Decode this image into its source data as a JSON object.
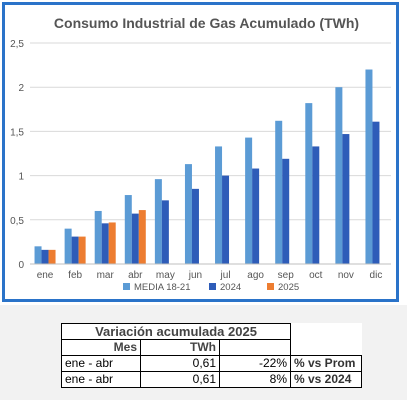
{
  "chart_data": {
    "type": "bar",
    "title": "Consumo Industrial de Gas Acumulado (TWh)",
    "xlabel": "",
    "ylabel": "",
    "categories": [
      "ene",
      "feb",
      "mar",
      "abr",
      "may",
      "jun",
      "jul",
      "ago",
      "sep",
      "oct",
      "nov",
      "dic"
    ],
    "ylim": [
      0,
      2.5
    ],
    "yticks": [
      "0",
      "0,5",
      "1",
      "1,5",
      "2",
      "2,5"
    ],
    "grid": true,
    "legend_position": "bottom",
    "series": [
      {
        "name": "MEDIA 18-21",
        "color": "#5b9bd5",
        "values": [
          0.2,
          0.4,
          0.6,
          0.78,
          0.96,
          1.13,
          1.33,
          1.43,
          1.62,
          1.82,
          2.0,
          2.2
        ]
      },
      {
        "name": "2024",
        "color": "#2e5cb8",
        "values": [
          0.16,
          0.31,
          0.46,
          0.57,
          0.72,
          0.85,
          1.0,
          1.08,
          1.19,
          1.33,
          1.47,
          1.61
        ]
      },
      {
        "name": "2025",
        "color": "#ed7d31",
        "values": [
          0.16,
          0.31,
          0.47,
          0.61,
          null,
          null,
          null,
          null,
          null,
          null,
          null,
          null
        ]
      }
    ]
  },
  "table": {
    "title": "Variación acumulada 2025",
    "headers": [
      "Mes",
      "TWh"
    ],
    "rows": [
      {
        "mes": "ene - abr",
        "twh": "0,61",
        "pct": "-22%",
        "label": "% vs Prom"
      },
      {
        "mes": "ene - abr",
        "twh": "0,61",
        "pct": "8%",
        "label": "% vs 2024"
      }
    ]
  }
}
